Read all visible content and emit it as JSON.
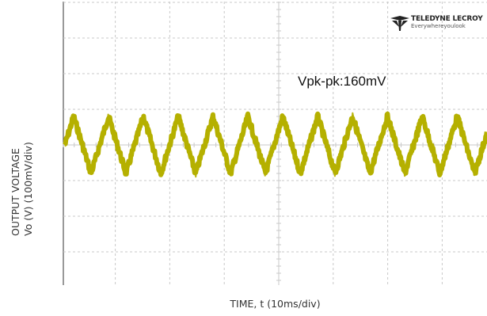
{
  "chart_data": {
    "type": "line",
    "ylabel_line1": "OUTPUT VOLTAGE",
    "ylabel_line2": "Vo (V) (100mV/div)",
    "xlabel": "TIME, t (10ms/div)",
    "annotation": "Vpk-pk:160mV",
    "grid": true,
    "x_divisions_visible": 6,
    "y_divisions_visible": 8,
    "series": [
      {
        "color": "#b5b000",
        "waveform": "triangle",
        "peak_to_peak_mV": 160,
        "period_ms": 6.4,
        "start_phase": "rising"
      }
    ]
  },
  "logo": {
    "brand": "TELEDYNE LECROY",
    "tagline": "Everywhereyoulook"
  },
  "colors": {
    "trace": "#b5b000",
    "grid": "#c8c8c8",
    "axis": "#555555"
  }
}
